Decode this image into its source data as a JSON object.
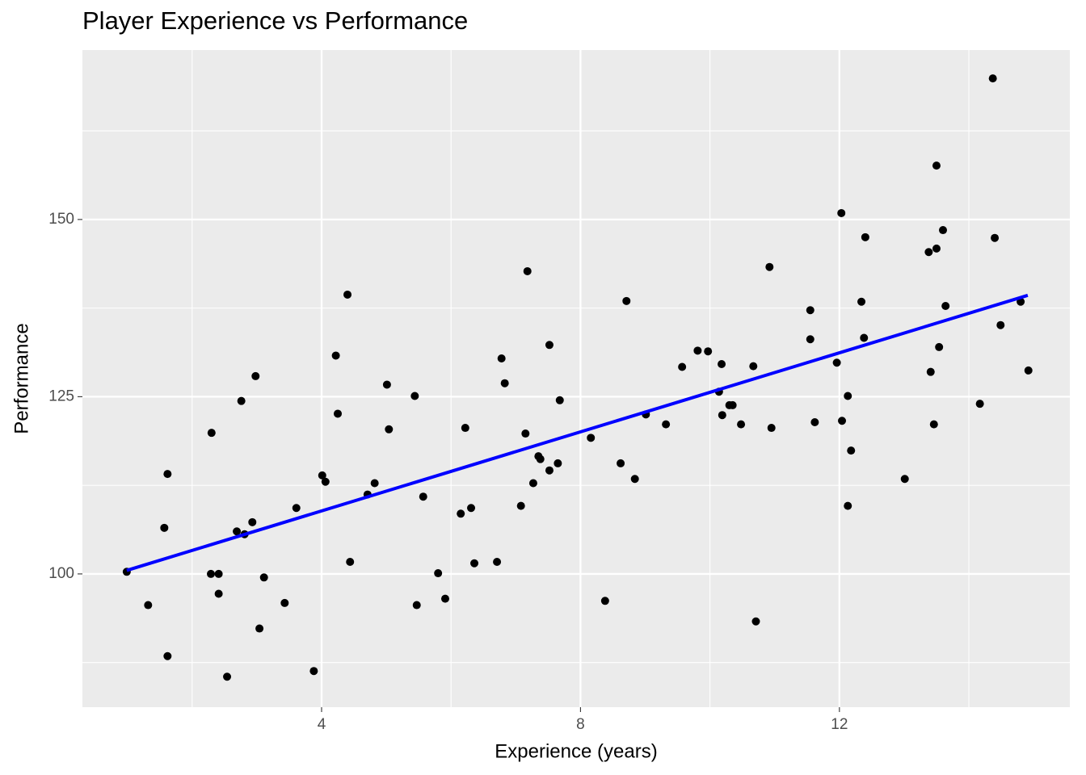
{
  "chart_data": {
    "type": "scatter",
    "title": "Player Experience vs Performance",
    "x_label": "Experience (years)",
    "y_label": "Performance",
    "xlim": [
      0.305,
      15.56
    ],
    "ylim": [
      81.2,
      173.9
    ],
    "xticks": [
      4,
      8,
      12
    ],
    "yticks": [
      100,
      125,
      150
    ],
    "grid": true,
    "series": [
      {
        "color": "#000000",
        "x": [
          0.99,
          1.32,
          1.62,
          1.62,
          1.57,
          2.3,
          2.29,
          2.41,
          2.41,
          2.54,
          2.69,
          2.76,
          2.81,
          2.93,
          2.98,
          3.04,
          3.11,
          3.43,
          3.61,
          3.88,
          4.01,
          4.06,
          4.22,
          4.25,
          4.4,
          4.44,
          4.71,
          4.82,
          5.01,
          5.04,
          5.44,
          5.47,
          5.57,
          5.8,
          5.91,
          6.15,
          6.22,
          6.31,
          6.36,
          6.71,
          6.78,
          6.83,
          7.08,
          7.15,
          7.18,
          7.27,
          7.35,
          7.38,
          7.52,
          7.52,
          7.65,
          7.68,
          8.16,
          8.38,
          8.62,
          8.71,
          8.84,
          9.01,
          9.32,
          9.57,
          9.81,
          9.97,
          10.14,
          10.18,
          10.19,
          10.3,
          10.35,
          10.48,
          10.67,
          10.71,
          10.92,
          10.95,
          11.55,
          11.55,
          11.62,
          11.96,
          12.03,
          12.04,
          12.13,
          12.13,
          12.18,
          12.34,
          12.38,
          12.4,
          13.01,
          13.38,
          13.41,
          13.46,
          13.5,
          13.5,
          13.54,
          13.6,
          13.64,
          14.17,
          14.37,
          14.4,
          14.49,
          14.8,
          14.92
        ],
        "values": [
          100.3,
          95.6,
          88.4,
          114.1,
          106.5,
          119.9,
          100.0,
          100.0,
          97.2,
          85.5,
          106.0,
          124.4,
          105.6,
          107.3,
          127.9,
          92.3,
          99.5,
          95.9,
          109.3,
          86.3,
          113.9,
          113.0,
          130.8,
          122.6,
          139.4,
          101.7,
          111.2,
          112.8,
          126.7,
          120.4,
          125.1,
          95.6,
          110.9,
          100.1,
          96.5,
          108.5,
          120.6,
          109.3,
          101.5,
          101.7,
          130.4,
          126.9,
          109.6,
          119.8,
          142.7,
          112.8,
          116.6,
          116.2,
          114.6,
          132.3,
          115.6,
          124.5,
          119.2,
          96.2,
          115.6,
          138.5,
          113.4,
          122.5,
          121.1,
          129.2,
          131.5,
          131.4,
          125.7,
          129.6,
          122.4,
          123.8,
          123.8,
          121.1,
          129.3,
          93.3,
          143.3,
          120.6,
          137.2,
          133.1,
          121.4,
          129.8,
          150.9,
          121.6,
          125.1,
          109.6,
          117.4,
          138.4,
          133.3,
          147.5,
          113.4,
          145.4,
          128.5,
          121.1,
          145.9,
          157.6,
          132.0,
          148.5,
          137.8,
          124.0,
          169.9,
          147.4,
          135.1,
          138.4,
          128.7
        ]
      },
      {
        "type": "line",
        "color": "#0000ff",
        "x": [
          0.99,
          14.91
        ],
        "values": [
          100.5,
          139.3
        ]
      }
    ]
  }
}
